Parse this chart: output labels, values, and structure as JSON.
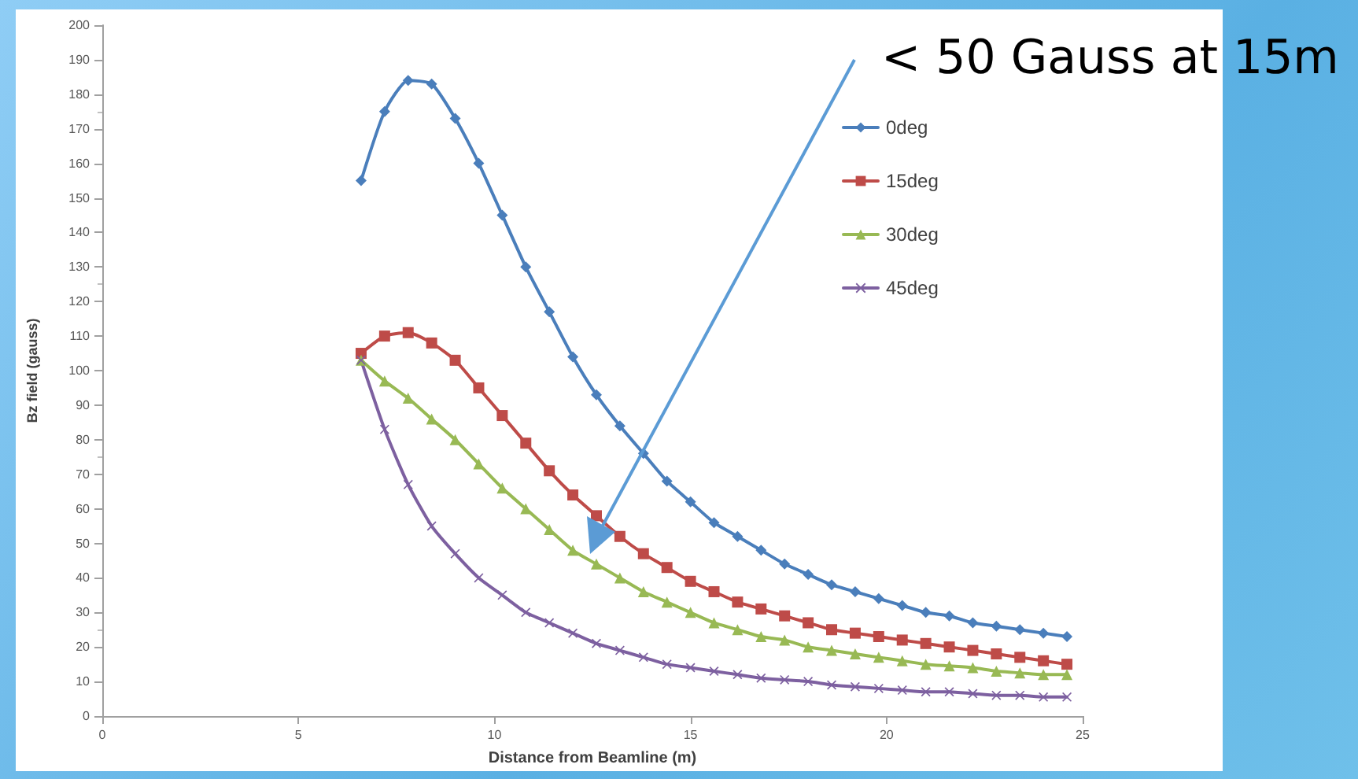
{
  "chart_data": {
    "type": "line",
    "xlabel": "Distance from Beamline (m)",
    "ylabel": "Bz field (gauss)",
    "x": [
      6.6,
      7.2,
      7.8,
      8.4,
      9.0,
      9.6,
      10.2,
      10.8,
      11.4,
      12.0,
      12.6,
      13.2,
      13.8,
      14.4,
      15.0,
      15.6,
      16.2,
      16.8,
      17.4,
      18.0,
      18.6,
      19.2,
      19.8,
      20.4,
      21.0,
      21.6,
      22.2,
      22.8,
      23.4,
      24.0,
      24.6
    ],
    "series": [
      {
        "name": "0deg",
        "color": "#4a7ebb",
        "marker": "diamond",
        "values": [
          155,
          175,
          184,
          183,
          173,
          160,
          145,
          130,
          117,
          104,
          93,
          84,
          76,
          68,
          62,
          56,
          52,
          48,
          44,
          41,
          38,
          36,
          34,
          32,
          30,
          29,
          27,
          26,
          25,
          24,
          23
        ]
      },
      {
        "name": "15deg",
        "color": "#be4b48",
        "marker": "square",
        "values": [
          105,
          110,
          111,
          108,
          103,
          95,
          87,
          79,
          71,
          64,
          58,
          52,
          47,
          43,
          39,
          36,
          33,
          31,
          29,
          27,
          25,
          24,
          23,
          22,
          21,
          20,
          19,
          18,
          17,
          16,
          15
        ]
      },
      {
        "name": "30deg",
        "color": "#98b954",
        "marker": "triangle",
        "values": [
          103,
          97,
          92,
          86,
          80,
          73,
          66,
          60,
          54,
          48,
          44,
          40,
          36,
          33,
          30,
          27,
          25,
          23,
          22,
          20,
          19,
          18,
          17,
          16,
          15,
          14.5,
          14,
          13,
          12.5,
          12,
          12
        ]
      },
      {
        "name": "45deg",
        "color": "#7d60a0",
        "marker": "cross",
        "values": [
          103,
          83,
          67,
          55,
          47,
          40,
          35,
          30,
          27,
          24,
          21,
          19,
          17,
          15,
          14,
          13,
          12,
          11,
          10.5,
          10,
          9,
          8.5,
          8,
          7.5,
          7,
          7,
          6.5,
          6,
          6,
          5.5,
          5.5
        ]
      }
    ],
    "xlim": [
      0,
      25
    ],
    "xticks": [
      0,
      5,
      10,
      15,
      20,
      25
    ],
    "ylim": [
      0,
      200
    ],
    "yticks": [
      0,
      10,
      20,
      30,
      40,
      50,
      60,
      70,
      80,
      90,
      100,
      110,
      120,
      130,
      140,
      150,
      160,
      170,
      180,
      190,
      200
    ],
    "grid": false,
    "legend": "top right",
    "line_style": "solid",
    "annotations": [
      "< 50 Gauss at 15m"
    ]
  }
}
